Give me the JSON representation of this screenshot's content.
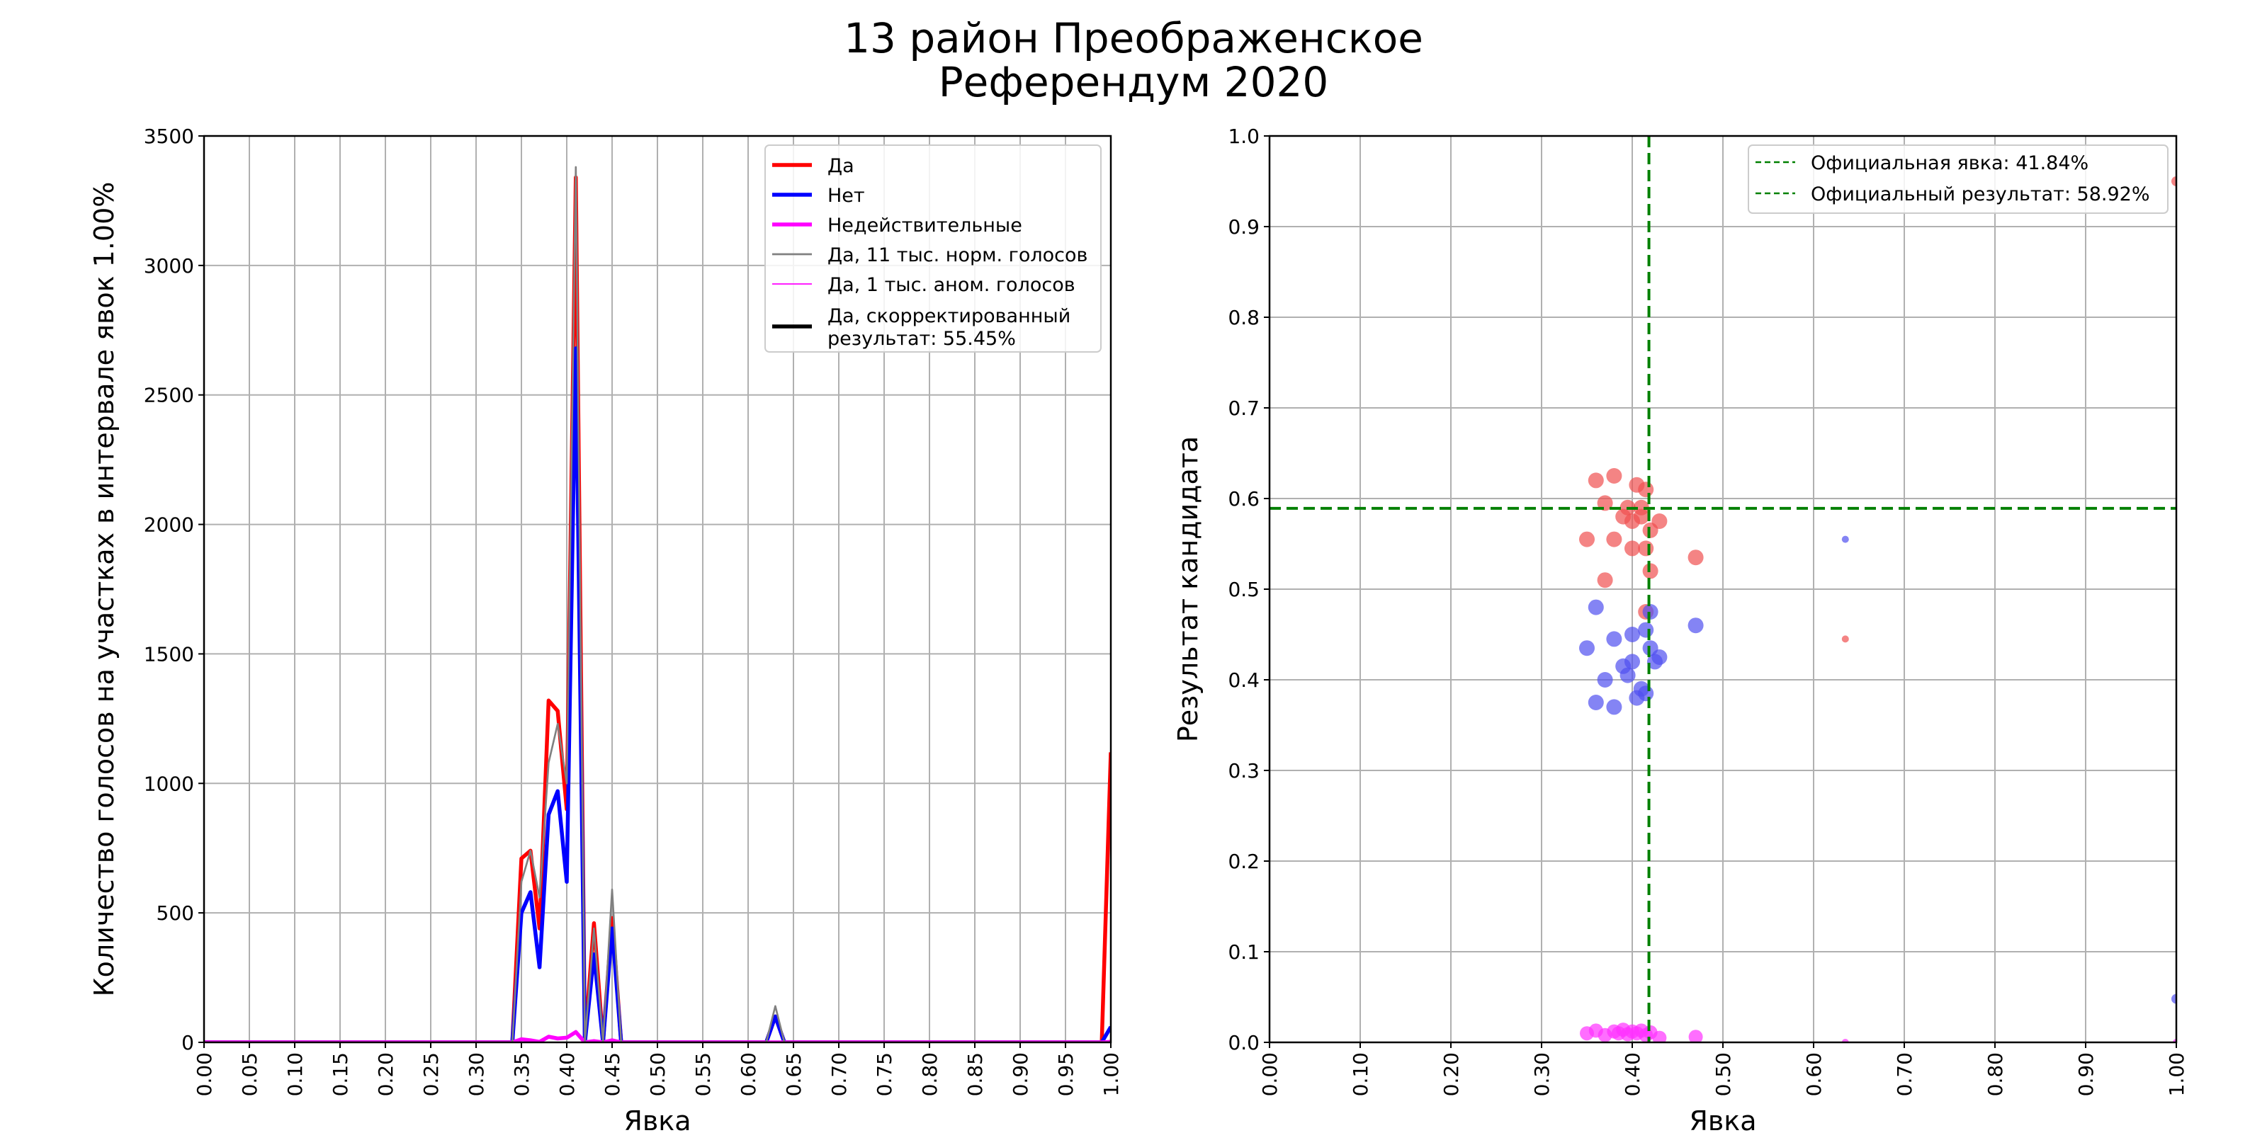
{
  "figure": {
    "title_line1": "13 район Преображенское",
    "title_line2": "Референдум 2020"
  },
  "chart_data": [
    {
      "type": "line",
      "xlabel": "Явка",
      "ylabel": "Количество голосов на участках в интервале явок 1.00%",
      "xlim": [
        0,
        1
      ],
      "ylim": [
        0,
        3500
      ],
      "xticks": [
        "0.00",
        "0.05",
        "0.10",
        "0.15",
        "0.20",
        "0.25",
        "0.30",
        "0.35",
        "0.40",
        "0.45",
        "0.50",
        "0.55",
        "0.60",
        "0.65",
        "0.70",
        "0.75",
        "0.80",
        "0.85",
        "0.90",
        "0.95",
        "1.00"
      ],
      "yticks": [
        "0",
        "500",
        "1000",
        "1500",
        "2000",
        "2500",
        "3000",
        "3500"
      ],
      "grid": true,
      "legend_position": "top-right",
      "series": [
        {
          "name": "Да",
          "color": "#ff0000",
          "width": 2.5,
          "points": [
            [
              0,
              0
            ],
            [
              0.34,
              0
            ],
            [
              0.35,
              710
            ],
            [
              0.36,
              740
            ],
            [
              0.37,
              440
            ],
            [
              0.38,
              1320
            ],
            [
              0.39,
              1280
            ],
            [
              0.4,
              900
            ],
            [
              0.41,
              3340
            ],
            [
              0.42,
              0
            ],
            [
              0.43,
              460
            ],
            [
              0.44,
              0
            ],
            [
              0.45,
              480
            ],
            [
              0.46,
              0
            ],
            [
              0.62,
              0
            ],
            [
              0.63,
              100
            ],
            [
              0.64,
              0
            ],
            [
              0.99,
              0
            ],
            [
              1.0,
              1120
            ]
          ]
        },
        {
          "name": "Нет",
          "color": "#0000ff",
          "width": 2.5,
          "points": [
            [
              0,
              0
            ],
            [
              0.34,
              0
            ],
            [
              0.35,
              500
            ],
            [
              0.36,
              580
            ],
            [
              0.37,
              290
            ],
            [
              0.38,
              880
            ],
            [
              0.39,
              970
            ],
            [
              0.4,
              620
            ],
            [
              0.41,
              2680
            ],
            [
              0.42,
              0
            ],
            [
              0.43,
              340
            ],
            [
              0.44,
              0
            ],
            [
              0.45,
              440
            ],
            [
              0.46,
              0
            ],
            [
              0.62,
              0
            ],
            [
              0.63,
              100
            ],
            [
              0.64,
              0
            ],
            [
              0.99,
              0
            ],
            [
              1.0,
              60
            ]
          ]
        },
        {
          "name": "Недействительные",
          "color": "#ff00ff",
          "width": 2.5,
          "points": [
            [
              0,
              0
            ],
            [
              0.34,
              0
            ],
            [
              0.35,
              12
            ],
            [
              0.36,
              8
            ],
            [
              0.37,
              2
            ],
            [
              0.38,
              22
            ],
            [
              0.39,
              15
            ],
            [
              0.4,
              18
            ],
            [
              0.41,
              40
            ],
            [
              0.42,
              0
            ],
            [
              0.43,
              5
            ],
            [
              0.44,
              0
            ],
            [
              0.45,
              8
            ],
            [
              0.46,
              0
            ],
            [
              0.99,
              0
            ],
            [
              1.0,
              2
            ]
          ]
        },
        {
          "name": "Да, 11 тыс. норм. голосов",
          "color": "#808080",
          "width": 1.2,
          "points": [
            [
              0,
              0
            ],
            [
              0.34,
              0
            ],
            [
              0.35,
              620
            ],
            [
              0.36,
              740
            ],
            [
              0.37,
              560
            ],
            [
              0.38,
              1080
            ],
            [
              0.39,
              1230
            ],
            [
              0.4,
              1000
            ],
            [
              0.41,
              3380
            ],
            [
              0.42,
              0
            ],
            [
              0.43,
              440
            ],
            [
              0.44,
              0
            ],
            [
              0.45,
              590
            ],
            [
              0.46,
              0
            ],
            [
              0.62,
              0
            ],
            [
              0.63,
              140
            ],
            [
              0.64,
              0
            ],
            [
              0.99,
              0
            ],
            [
              1.0,
              0
            ]
          ]
        },
        {
          "name": "Да, 1 тыс. аном. голосов",
          "color": "#ff00ff",
          "width": 0.8,
          "points": [
            [
              0,
              0
            ],
            [
              0.99,
              0
            ],
            [
              1.0,
              0
            ]
          ]
        },
        {
          "name": "Да, скорректированный результат: 55.45%",
          "color": "#000000",
          "width": 2.5,
          "points": []
        }
      ]
    },
    {
      "type": "scatter",
      "xlabel": "Явка",
      "ylabel": "Результат кандидата",
      "xlim": [
        0,
        1
      ],
      "ylim": [
        0,
        1
      ],
      "xticks": [
        "0.00",
        "0.10",
        "0.20",
        "0.30",
        "0.40",
        "0.50",
        "0.60",
        "0.70",
        "0.80",
        "0.90",
        "1.00"
      ],
      "yticks": [
        "0.0",
        "0.1",
        "0.2",
        "0.3",
        "0.4",
        "0.5",
        "0.6",
        "0.7",
        "0.8",
        "0.9",
        "1.0"
      ],
      "grid": true,
      "legend_position": "top-right",
      "reference_lines": [
        {
          "name": "Официальная явка: 41.84%",
          "orientation": "vertical",
          "value": 0.4184,
          "color": "#008000"
        },
        {
          "name": "Официальный результат: 58.92%",
          "orientation": "horizontal",
          "value": 0.5892,
          "color": "#008000"
        }
      ],
      "series": [
        {
          "name": "Да",
          "color": "#f05050",
          "points": [
            [
              0.35,
              0.555,
              22
            ],
            [
              0.36,
              0.62,
              22
            ],
            [
              0.37,
              0.595,
              22
            ],
            [
              0.38,
              0.625,
              22
            ],
            [
              0.38,
              0.555,
              22
            ],
            [
              0.39,
              0.58,
              22
            ],
            [
              0.395,
              0.59,
              22
            ],
            [
              0.4,
              0.575,
              22
            ],
            [
              0.4,
              0.545,
              22
            ],
            [
              0.405,
              0.615,
              22
            ],
            [
              0.41,
              0.59,
              22
            ],
            [
              0.41,
              0.58,
              22
            ],
            [
              0.415,
              0.61,
              22
            ],
            [
              0.415,
              0.545,
              22
            ],
            [
              0.42,
              0.565,
              22
            ],
            [
              0.42,
              0.52,
              22
            ],
            [
              0.415,
              0.475,
              22
            ],
            [
              0.43,
              0.575,
              22
            ],
            [
              0.37,
              0.51,
              22
            ],
            [
              0.47,
              0.535,
              22
            ],
            [
              0.635,
              0.445,
              10
            ],
            [
              1.0,
              0.95,
              14
            ]
          ]
        },
        {
          "name": "Нет",
          "color": "#5050f0",
          "points": [
            [
              0.35,
              0.435,
              22
            ],
            [
              0.36,
              0.48,
              22
            ],
            [
              0.37,
              0.4,
              22
            ],
            [
              0.38,
              0.445,
              22
            ],
            [
              0.38,
              0.37,
              22
            ],
            [
              0.39,
              0.415,
              22
            ],
            [
              0.395,
              0.405,
              22
            ],
            [
              0.4,
              0.45,
              22
            ],
            [
              0.4,
              0.42,
              22
            ],
            [
              0.405,
              0.38,
              22
            ],
            [
              0.41,
              0.39,
              22
            ],
            [
              0.415,
              0.455,
              22
            ],
            [
              0.415,
              0.385,
              22
            ],
            [
              0.42,
              0.435,
              22
            ],
            [
              0.42,
              0.475,
              22
            ],
            [
              0.425,
              0.42,
              22
            ],
            [
              0.43,
              0.425,
              22
            ],
            [
              0.36,
              0.375,
              22
            ],
            [
              0.47,
              0.46,
              22
            ],
            [
              0.635,
              0.555,
              10
            ],
            [
              1.0,
              0.048,
              14
            ]
          ]
        },
        {
          "name": "Недействительные",
          "color": "#ff30ff",
          "points": [
            [
              0.35,
              0.01,
              20
            ],
            [
              0.36,
              0.013,
              20
            ],
            [
              0.37,
              0.008,
              20
            ],
            [
              0.38,
              0.012,
              20
            ],
            [
              0.385,
              0.01,
              20
            ],
            [
              0.39,
              0.014,
              20
            ],
            [
              0.395,
              0.009,
              20
            ],
            [
              0.4,
              0.012,
              20
            ],
            [
              0.405,
              0.01,
              20
            ],
            [
              0.41,
              0.013,
              20
            ],
            [
              0.415,
              0.008,
              20
            ],
            [
              0.42,
              0.011,
              20
            ],
            [
              0.43,
              0.005,
              20
            ],
            [
              0.47,
              0.006,
              20
            ],
            [
              0.635,
              0.0,
              10
            ],
            [
              1.0,
              0.0,
              10
            ]
          ]
        }
      ]
    }
  ]
}
